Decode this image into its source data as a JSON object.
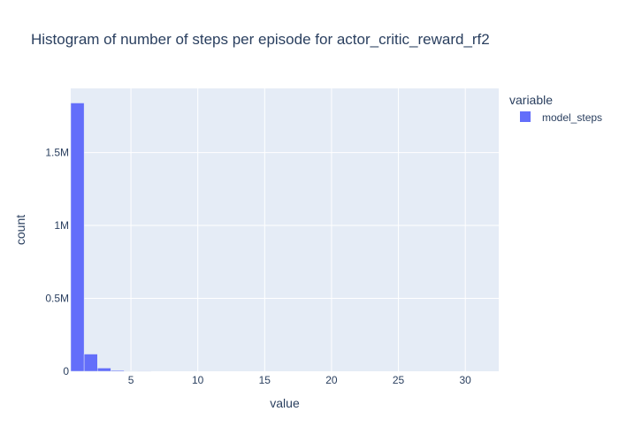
{
  "chart_data": {
    "type": "bar",
    "subtype": "histogram",
    "title": "Histogram of number of steps per episode for actor_critic_reward_rf2",
    "xlabel": "value",
    "ylabel": "count",
    "legend_title": "variable",
    "legend_position": "top-right",
    "grid": true,
    "plot_background": "#e5ecf6",
    "series": [
      {
        "name": "model_steps",
        "color": "#636efa",
        "bin_width": 1,
        "bins": [
          {
            "start": 0.5,
            "end": 1.5,
            "count": 1840000
          },
          {
            "start": 1.5,
            "end": 2.5,
            "count": 118000
          },
          {
            "start": 2.5,
            "end": 3.5,
            "count": 22000
          },
          {
            "start": 3.5,
            "end": 4.5,
            "count": 6000
          },
          {
            "start": 4.5,
            "end": 5.5,
            "count": 3000
          },
          {
            "start": 5.5,
            "end": 6.5,
            "count": 1000
          }
        ]
      }
    ],
    "xlim": [
      0.5,
      32.5
    ],
    "ylim": [
      0,
      1940000
    ],
    "x_ticks": [
      {
        "value": 5,
        "label": "5"
      },
      {
        "value": 10,
        "label": "10"
      },
      {
        "value": 15,
        "label": "15"
      },
      {
        "value": 20,
        "label": "20"
      },
      {
        "value": 25,
        "label": "25"
      },
      {
        "value": 30,
        "label": "30"
      }
    ],
    "y_ticks": [
      {
        "value": 0,
        "label": "0"
      },
      {
        "value": 500000,
        "label": "0.5M"
      },
      {
        "value": 1000000,
        "label": "1M"
      },
      {
        "value": 1500000,
        "label": "1.5M"
      }
    ]
  }
}
